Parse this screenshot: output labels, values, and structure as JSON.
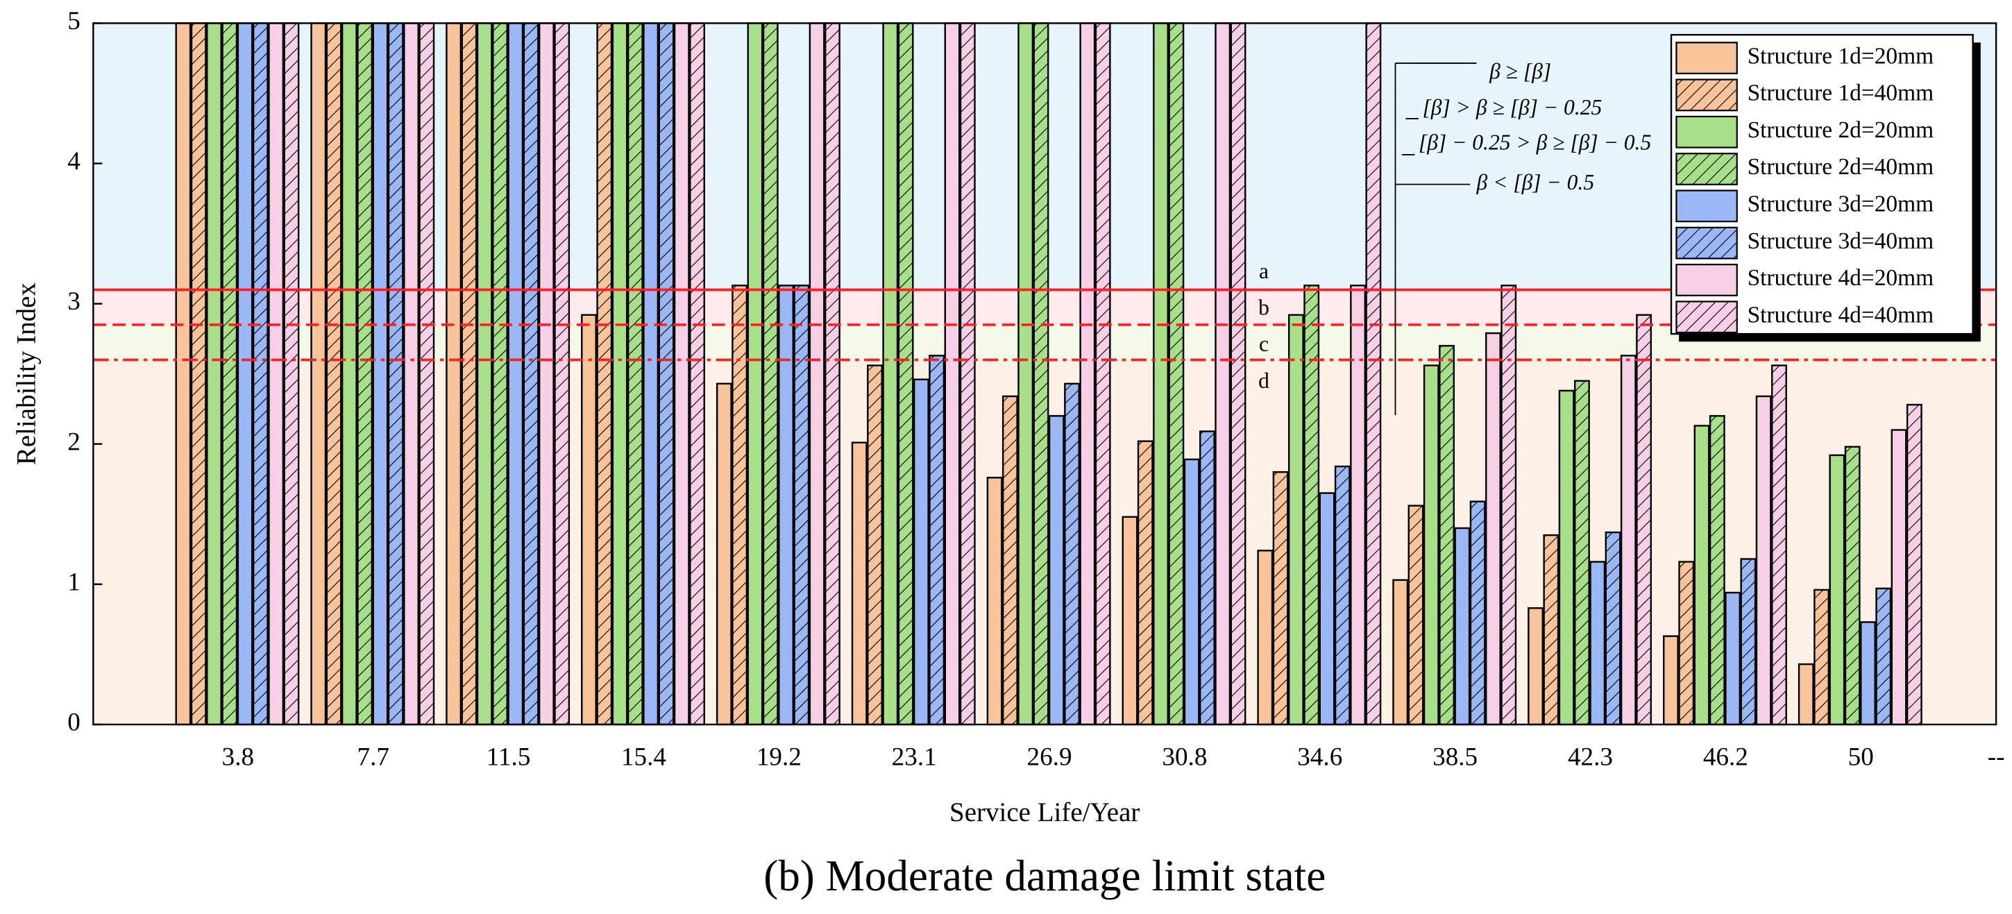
{
  "chart_data": {
    "type": "bar",
    "caption": "(b) Moderate damage limit state",
    "xlabel": "Service Life/Year",
    "ylabel": "Reliability Index",
    "categories": [
      "3.8",
      "7.7",
      "11.5",
      "15.4",
      "19.2",
      "23.1",
      "26.9",
      "30.8",
      "34.6",
      "38.5",
      "42.3",
      "46.2",
      "50",
      "--"
    ],
    "ylim": [
      0,
      5
    ],
    "yticks": [
      0,
      1,
      2,
      3,
      4,
      5
    ],
    "series": [
      {
        "name": "Structure 1d=20mm",
        "color": "#f9c49a",
        "hatch": false,
        "values": [
          5,
          5,
          5,
          2.92,
          2.43,
          2.01,
          1.76,
          1.48,
          1.24,
          1.03,
          0.83,
          0.63,
          0.43,
          null
        ]
      },
      {
        "name": "Structure 1d=40mm",
        "color": "#f9c49a",
        "hatch": true,
        "values": [
          5,
          5,
          5,
          5,
          3.13,
          2.56,
          2.34,
          2.02,
          1.8,
          1.56,
          1.35,
          1.16,
          0.96,
          null
        ]
      },
      {
        "name": "Structure 2d=20mm",
        "color": "#a8e08a",
        "hatch": false,
        "values": [
          5,
          5,
          5,
          5,
          5,
          5,
          5,
          5,
          2.92,
          2.56,
          2.38,
          2.13,
          1.92,
          null
        ]
      },
      {
        "name": "Structure 2d=40mm",
        "color": "#a8e08a",
        "hatch": true,
        "values": [
          5,
          5,
          5,
          5,
          5,
          5,
          5,
          5,
          3.13,
          2.7,
          2.45,
          2.2,
          1.98,
          null
        ]
      },
      {
        "name": "Structure 3d=20mm",
        "color": "#9ab8f5",
        "hatch": false,
        "values": [
          5,
          5,
          5,
          5,
          3.13,
          2.46,
          2.2,
          1.89,
          1.65,
          1.4,
          1.16,
          0.94,
          0.73,
          null
        ]
      },
      {
        "name": "Structure 3d=40mm",
        "color": "#9ab8f5",
        "hatch": true,
        "values": [
          5,
          5,
          5,
          5,
          3.13,
          2.63,
          2.43,
          2.09,
          1.84,
          1.59,
          1.37,
          1.18,
          0.97,
          null
        ]
      },
      {
        "name": "Structure 4d=20mm",
        "color": "#f7d0e8",
        "hatch": false,
        "values": [
          5,
          5,
          5,
          5,
          5,
          5,
          5,
          5,
          3.13,
          2.79,
          2.63,
          2.34,
          2.1,
          null
        ]
      },
      {
        "name": "Structure 4d=40mm",
        "color": "#f7d0e8",
        "hatch": true,
        "values": [
          5,
          5,
          5,
          5,
          5,
          5,
          5,
          5,
          5,
          3.13,
          2.92,
          2.56,
          2.28,
          null
        ]
      }
    ],
    "thresholds": [
      3.1,
      2.85,
      2.6
    ],
    "threshold_styles": [
      "solid",
      "dashed",
      "dashdot"
    ],
    "threshold_color": "#ff2020",
    "band_labels": [
      "a",
      "b",
      "c",
      "d"
    ],
    "band_colors": [
      "#e6f4fc",
      "#fdeaea",
      "#f3f9e6",
      "#fdf1e6"
    ],
    "annotations": [
      "β ≥ [β]",
      "[β] > β ≥ [β] − 0.25",
      "[β] − 0.25 > β ≥ [β] − 0.5",
      "β < [β] − 0.5"
    ],
    "legend": "upper right"
  }
}
